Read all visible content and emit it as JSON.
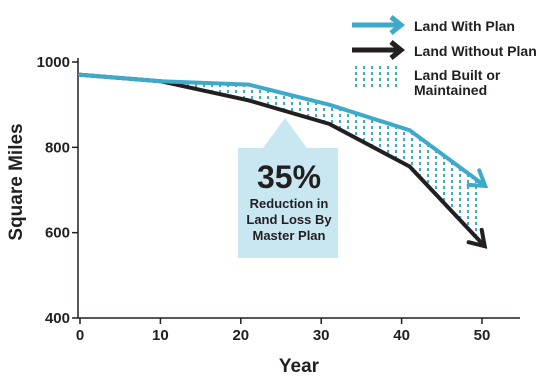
{
  "chart_data": {
    "type": "line",
    "xlabel": "Year",
    "ylabel": "Square Miles",
    "xlim": [
      0,
      55
    ],
    "ylim": [
      400,
      1000
    ],
    "xticks": [
      0,
      10,
      20,
      30,
      40,
      50
    ],
    "yticks": [
      400,
      600,
      800,
      1000
    ],
    "grid": false,
    "legend_position": "top-right",
    "series": [
      {
        "name": "Land With Plan",
        "x": [
          0,
          10,
          21,
          31,
          41,
          50
        ],
        "y": [
          970,
          955,
          947,
          900,
          840,
          715
        ],
        "color": "#3fa9c9"
      },
      {
        "name": "Land Without Plan",
        "x": [
          0,
          10,
          21,
          31,
          41,
          50
        ],
        "y": [
          970,
          955,
          910,
          855,
          755,
          575
        ],
        "color": "#231f20"
      }
    ],
    "band": {
      "name": "Land Built or Maintained",
      "color": "#3fa9c9"
    },
    "legend": [
      {
        "label": "Land With Plan",
        "kind": "arrow",
        "color": "#3fa9c9"
      },
      {
        "label": "Land Without Plan",
        "kind": "arrow",
        "color": "#231f20"
      },
      {
        "label_line1": "Land Built or",
        "label_line2": "Maintained",
        "kind": "dots",
        "color": "#3fa9c9"
      }
    ],
    "annotation": {
      "value": "35%",
      "line1": "Reduction in",
      "line2": "Land Loss By",
      "line3": "Master Plan",
      "background": "#c9e7f1"
    }
  }
}
